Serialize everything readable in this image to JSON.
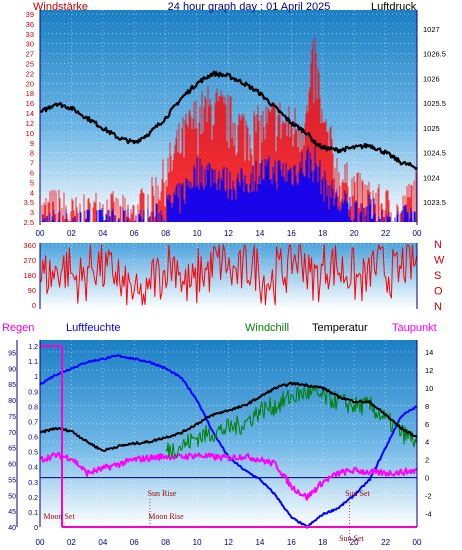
{
  "title": "24 hour graph day : 01 April 2025",
  "colors": {
    "wind": "#ff0000",
    "gust_band": "#0000ff",
    "pressure": "#000000",
    "direction": "#ff0000",
    "rain": "#ff00cc",
    "humidity": "#0000ff",
    "windchill": "#008000",
    "temperature": "#000000",
    "dewpoint": "#ff00ff",
    "axis_left": "#cc0000",
    "axis_navy": "#000080"
  },
  "time_ticks": [
    "00",
    "02",
    "04",
    "06",
    "08",
    "10",
    "12",
    "14",
    "16",
    "18",
    "20",
    "22",
    "00"
  ],
  "chart_data": [
    {
      "type": "line",
      "left_label": "Windstärke",
      "right_label": "Luftdruck",
      "y_left_ticks": [
        "2.5",
        "3",
        "3.5",
        "4",
        "5",
        "6",
        "7",
        "8",
        "9",
        "10",
        "12",
        "14",
        "16",
        "18",
        "20",
        "22",
        "25",
        "27",
        "30",
        "33",
        "36",
        "39"
      ],
      "y_right_ticks": [
        "1023.5",
        "1024",
        "1024.5",
        "1025",
        "1025.5",
        "1026",
        "1026.5",
        "1027"
      ],
      "y_right_lim": [
        1023.1,
        1027.3
      ],
      "x_hours": [
        0,
        1,
        2,
        3,
        4,
        5,
        6,
        7,
        8,
        9,
        10,
        11,
        12,
        13,
        14,
        15,
        16,
        17,
        17.5,
        18,
        19,
        20,
        21,
        22,
        23,
        24
      ],
      "series": [
        {
          "name": "Luftdruck",
          "axis": "right",
          "values": [
            1025.3,
            1025.5,
            1025.4,
            1025.2,
            1025.0,
            1024.8,
            1024.7,
            1024.9,
            1025.2,
            1025.6,
            1025.9,
            1026.1,
            1026.05,
            1025.9,
            1025.7,
            1025.4,
            1025.1,
            1024.9,
            1024.7,
            1024.6,
            1024.55,
            1024.6,
            1024.65,
            1024.5,
            1024.3,
            1024.2
          ]
        },
        {
          "name": "Windstärke",
          "axis": "left",
          "values": [
            3,
            3.5,
            3,
            3,
            3.5,
            3,
            3,
            4,
            6,
            10,
            14,
            16,
            14,
            12,
            12,
            14,
            12,
            14,
            27,
            12,
            6,
            5,
            4,
            3.5,
            3,
            5
          ]
        },
        {
          "name": "Böen-Spanne",
          "axis": "left",
          "values": [
            2.5,
            2.5,
            2.5,
            2.5,
            2.5,
            2.5,
            2.5,
            2.5,
            3,
            4,
            6,
            6,
            5,
            5,
            6,
            6,
            6,
            7,
            7,
            5,
            3.5,
            3,
            3,
            2.5,
            2.5,
            3
          ]
        }
      ]
    },
    {
      "type": "line",
      "left_ticks": [
        "360",
        "270",
        "180",
        "90",
        "0"
      ],
      "right_ticks": [
        "N",
        "W",
        "S",
        "O",
        "N"
      ],
      "series": [
        {
          "name": "direction",
          "values": [
            180,
            220,
            160,
            240,
            200,
            90,
            40,
            180,
            250,
            120,
            200,
            260,
            190,
            230,
            150,
            210,
            280,
            170,
            240,
            200,
            150,
            230,
            190,
            250,
            210
          ]
        }
      ]
    },
    {
      "type": "line",
      "labels": {
        "rain": "Regen",
        "humidity": "Luftfeuchte",
        "windchill": "Windchill",
        "temperature": "Temperatur",
        "dewpoint": "Taupunkt"
      },
      "rain_ticks": [
        "1.2",
        "1.1",
        "1",
        "0.9",
        "0.8",
        "0.7",
        "0.6",
        "0.5",
        "0.4",
        "0.3",
        "0.2",
        "0.1",
        "0"
      ],
      "humidity_ticks": [
        "95",
        "90",
        "85",
        "80",
        "75",
        "70",
        "65",
        "60",
        "55",
        "50",
        "45",
        "40"
      ],
      "temp_ticks": [
        "14",
        "12",
        "10",
        "8",
        "6",
        "4",
        "2",
        "0",
        "-2",
        "-4"
      ],
      "temp_lim": [
        -5.5,
        15
      ],
      "hum_lim": [
        40,
        98
      ],
      "x_hours": [
        0,
        1,
        2,
        3,
        4,
        5,
        6,
        7,
        8,
        9,
        10,
        11,
        12,
        13,
        14,
        15,
        16,
        17,
        18,
        19,
        20,
        21,
        22,
        23,
        24
      ],
      "series": [
        {
          "name": "Temperatur",
          "axis": "temp",
          "values": [
            5,
            5.5,
            5.2,
            4,
            3,
            3.5,
            3.8,
            4,
            4.5,
            5,
            6,
            7,
            7.5,
            8,
            9,
            10,
            10.5,
            10.3,
            10,
            9,
            8.5,
            8.4,
            7,
            5.5,
            4.5
          ]
        },
        {
          "name": "Windchill",
          "axis": "temp",
          "values": [
            null,
            null,
            null,
            null,
            null,
            null,
            null,
            null,
            3,
            3.5,
            4.5,
            5,
            5.5,
            6,
            7.5,
            8,
            9,
            9.5,
            9,
            8.5,
            8,
            8,
            6.5,
            5,
            4
          ]
        },
        {
          "name": "Taupunkt",
          "axis": "temp",
          "values": [
            2,
            2.5,
            2.2,
            0.5,
            1,
            1.5,
            2,
            2.2,
            2.4,
            2.3,
            2.5,
            2.3,
            2.2,
            2.4,
            2.0,
            1.5,
            -1,
            -2.2,
            -0.5,
            0.5,
            0.8,
            0.6,
            0.5,
            0.6,
            0.8
          ]
        },
        {
          "name": "Luftfeuchte",
          "axis": "hum",
          "values": [
            85,
            88,
            90,
            92,
            93,
            94,
            93,
            92,
            90,
            87,
            80,
            70,
            62,
            58,
            55,
            50,
            43,
            40,
            44,
            46,
            50,
            55,
            65,
            75,
            78
          ]
        },
        {
          "name": "Regen",
          "axis": "rain",
          "values": [
            1.2,
            0,
            0,
            0,
            0,
            0,
            0,
            0,
            0,
            0,
            0,
            0,
            0,
            0,
            0,
            0,
            0,
            0,
            0,
            0,
            0,
            0,
            0,
            0,
            0
          ]
        }
      ],
      "events": [
        {
          "label": "Moon Set",
          "hour": 0
        },
        {
          "label": "Sun Rise",
          "hour": 7
        },
        {
          "label": "Moon Rise",
          "hour": 7
        },
        {
          "label": "Sun Set",
          "hour": 19.7
        },
        {
          "label": "Sun Set",
          "hour": 19.7
        }
      ]
    }
  ]
}
